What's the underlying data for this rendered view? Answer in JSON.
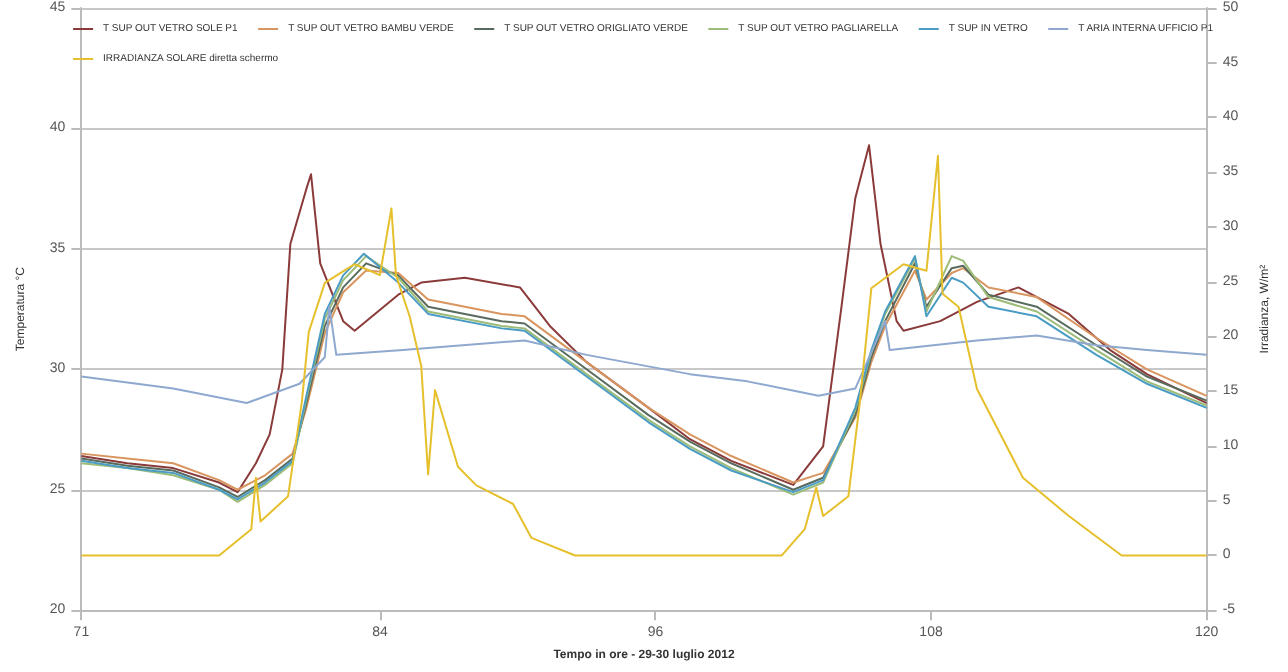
{
  "chart_data": {
    "type": "line",
    "xlabel": "Tempo in ore - 29-30 luglio 2012",
    "ylabel": "Temperatura °C",
    "y2label": "Irradianza, W/m²",
    "xlim": [
      71,
      120
    ],
    "xticks": [
      71,
      84,
      96,
      108,
      120
    ],
    "ylim": [
      20,
      45
    ],
    "yticks": [
      20,
      25,
      30,
      35,
      40,
      45
    ],
    "y2lim": [
      -5,
      50
    ],
    "y2ticks": [
      -5,
      0,
      5,
      10,
      15,
      20,
      25,
      30,
      35,
      40,
      45,
      50
    ],
    "grid": "y",
    "legend": "top",
    "marker": "none",
    "series": [
      {
        "name": "T SUP OUT VETRO SOLE P1",
        "color": "#8b3a3a",
        "x": [
          71,
          73,
          75,
          77,
          77.8,
          78.6,
          79.2,
          79.75,
          80.1,
          80.8,
          81.0,
          81.4,
          82.4,
          82.9,
          84.8,
          85.8,
          87.7,
          90.1,
          91.4,
          93,
          95.7,
          97.5,
          99.3,
          102,
          103.3,
          104.1,
          104.7,
          105.3,
          105.8,
          106.5,
          106.8,
          108.4,
          110,
          111.8,
          114,
          115.8,
          117.4,
          120
        ],
        "values": [
          26.4,
          26.1,
          25.9,
          25.3,
          24.9,
          26.1,
          27.3,
          30.0,
          35.2,
          37.5,
          38.1,
          34.4,
          32.0,
          31.6,
          33.1,
          33.6,
          33.8,
          33.4,
          31.8,
          30.3,
          28.4,
          27.1,
          26.2,
          25.2,
          26.8,
          32.6,
          37.1,
          39.3,
          35.2,
          32.0,
          31.6,
          32.0,
          32.8,
          33.4,
          32.3,
          30.8,
          29.8,
          28.6
        ]
      },
      {
        "name": "T SUP OUT VETRO BAMBU VERDE",
        "color": "#d8955f",
        "x": [
          71,
          73,
          75,
          77,
          77.8,
          79,
          80.2,
          80.8,
          81.6,
          82.4,
          83.4,
          84.8,
          86.1,
          89.3,
          90.3,
          93,
          95.7,
          97.5,
          99.3,
          102,
          103.3,
          104.7,
          105.4,
          106,
          107.3,
          107.8,
          108.9,
          109.4,
          110.5,
          112.6,
          115.2,
          117.4,
          120
        ],
        "values": [
          26.5,
          26.3,
          26.1,
          25.4,
          25.0,
          25.6,
          26.5,
          28.4,
          31.5,
          33.2,
          34.1,
          34.0,
          32.9,
          32.3,
          32.2,
          30.3,
          28.4,
          27.3,
          26.4,
          25.3,
          25.7,
          28.0,
          30.3,
          31.8,
          34.1,
          32.9,
          34.0,
          34.2,
          33.4,
          33.0,
          31.3,
          30.0,
          28.9
        ]
      },
      {
        "name": "T SUP OUT VETRO ORIGLIATO VERDE",
        "color": "#586b5e",
        "x": [
          71,
          73,
          75,
          77,
          77.8,
          79,
          80.2,
          80.8,
          81.6,
          82.4,
          83.4,
          84.8,
          86.1,
          89.3,
          90.3,
          93,
          95.7,
          97.5,
          99.3,
          102,
          103.3,
          104.7,
          105.4,
          106,
          107.3,
          107.8,
          108.9,
          109.4,
          110.5,
          112.6,
          115.2,
          117.4,
          120
        ],
        "values": [
          26.3,
          26.0,
          25.8,
          25.1,
          24.7,
          25.4,
          26.3,
          28.6,
          31.8,
          33.4,
          34.4,
          33.9,
          32.6,
          32.0,
          31.9,
          30.0,
          28.1,
          27.0,
          26.1,
          25.0,
          25.5,
          28.1,
          30.5,
          32.0,
          34.4,
          32.6,
          34.2,
          34.3,
          33.1,
          32.6,
          31.0,
          29.7,
          28.7
        ]
      },
      {
        "name": "T SUP OUT VETRO PAGLIARELLA",
        "color": "#9cbc78",
        "x": [
          71,
          73,
          75,
          77,
          77.8,
          79,
          80.2,
          80.8,
          81.6,
          82.4,
          83.4,
          84.8,
          86.1,
          89.3,
          90.3,
          93,
          95.7,
          97.5,
          99.3,
          102,
          103.3,
          104.7,
          105.4,
          106,
          107.3,
          107.8,
          108.9,
          109.4,
          110.5,
          112.6,
          115.2,
          117.4,
          120
        ],
        "values": [
          26.1,
          25.9,
          25.6,
          25.0,
          24.5,
          25.2,
          26.1,
          28.8,
          32.1,
          33.7,
          34.7,
          33.8,
          32.4,
          31.8,
          31.7,
          29.8,
          27.9,
          26.8,
          25.9,
          24.8,
          25.3,
          28.3,
          30.7,
          32.3,
          34.6,
          32.4,
          34.7,
          34.5,
          33.0,
          32.4,
          30.8,
          29.5,
          28.5
        ]
      },
      {
        "name": "T SUP IN VETRO",
        "color": "#4a9cc4",
        "x": [
          71,
          73,
          75,
          77,
          77.8,
          79,
          80.2,
          80.8,
          81.6,
          82.4,
          83.3,
          84.8,
          86.1,
          89.3,
          90.3,
          93,
          95.7,
          97.5,
          99.3,
          102,
          103.3,
          104.7,
          105.4,
          106,
          107.3,
          107.8,
          108.9,
          109.4,
          110.5,
          112.6,
          115.2,
          117.4,
          120
        ],
        "values": [
          26.2,
          25.9,
          25.7,
          25.0,
          24.6,
          25.3,
          26.2,
          28.9,
          32.3,
          33.9,
          34.8,
          33.6,
          32.3,
          31.7,
          31.6,
          29.7,
          27.8,
          26.7,
          25.8,
          24.9,
          25.4,
          28.4,
          30.8,
          32.4,
          34.7,
          32.2,
          33.8,
          33.6,
          32.6,
          32.2,
          30.6,
          29.4,
          28.4
        ]
      },
      {
        "name": "T ARIA INTERNA UFFICIO P1",
        "color": "#8ea8cf",
        "x": [
          71,
          75,
          78.2,
          80.5,
          81.6,
          81.8,
          82.1,
          85,
          90.3,
          93,
          97.5,
          100,
          103.1,
          104.7,
          106,
          106.2,
          110,
          112.6,
          115.2,
          117.4,
          120
        ],
        "values": [
          29.7,
          29.2,
          28.6,
          29.4,
          30.5,
          32.6,
          30.6,
          30.8,
          31.2,
          30.6,
          29.8,
          29.5,
          28.9,
          29.2,
          32.0,
          30.8,
          31.2,
          31.4,
          31.0,
          30.8,
          30.6
        ]
      },
      {
        "name": "IRRADIANZA SOLARE diretta schermo",
        "color": "#e6c02c",
        "axis": "y2",
        "x": [
          71,
          77,
          78.4,
          78.6,
          78.8,
          80,
          80.6,
          80.9,
          81.6,
          82.9,
          84,
          84.5,
          84.7,
          85.3,
          85.8,
          86.1,
          86.4,
          87.4,
          88.2,
          89.8,
          90.6,
          92.5,
          101.5,
          102.5,
          103,
          103.3,
          104.4,
          104.9,
          105.4,
          106.8,
          107.8,
          108.3,
          108.5,
          109.2,
          110,
          112,
          114,
          116.3,
          120
        ],
        "values": [
          0,
          0,
          2.4,
          7.1,
          3.1,
          5.4,
          14.0,
          20.4,
          24.9,
          26.6,
          25.6,
          31.7,
          25.6,
          21.8,
          17.3,
          7.4,
          15.1,
          8.1,
          6.4,
          4.7,
          1.6,
          0,
          0,
          2.4,
          6.2,
          3.6,
          5.4,
          14.0,
          24.4,
          26.6,
          26.0,
          36.5,
          23.9,
          22.7,
          15.2,
          7.1,
          3.6,
          0,
          0
        ]
      }
    ]
  }
}
